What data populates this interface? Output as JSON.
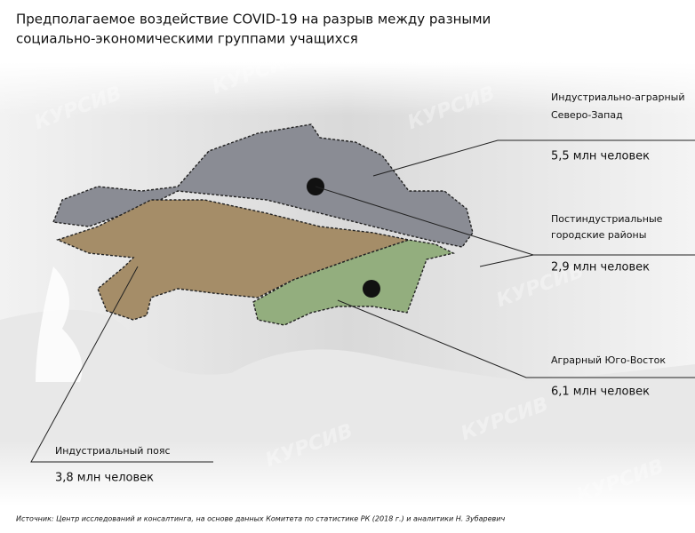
{
  "header": {
    "title_lines": [
      "Предполагаемое воздействие COVID-19 на разрыв между разными",
      "социально-экономическими группами учащихся"
    ]
  },
  "regions": [
    {
      "label_lines": [
        "Индустриально-аграрный",
        "Северо-Запад"
      ],
      "value": "5,5 млн человек"
    },
    {
      "label_lines": [
        "Постиндустриальные",
        "городские районы"
      ],
      "value": "2,9 млн человек"
    },
    {
      "label_lines": [
        "Аграрный Юго-Восток"
      ],
      "value": "6,1 млн человек"
    },
    {
      "label_lines": [
        "Индустриальный пояс"
      ],
      "value": "3,8 млн человек"
    }
  ],
  "watermark": "КУРСИВ",
  "source": "Источник: Центр исследований и консалтинга, на основе данных Комитета по статистике РК (2018 г.) и аналитики Н. Зубаревич"
}
